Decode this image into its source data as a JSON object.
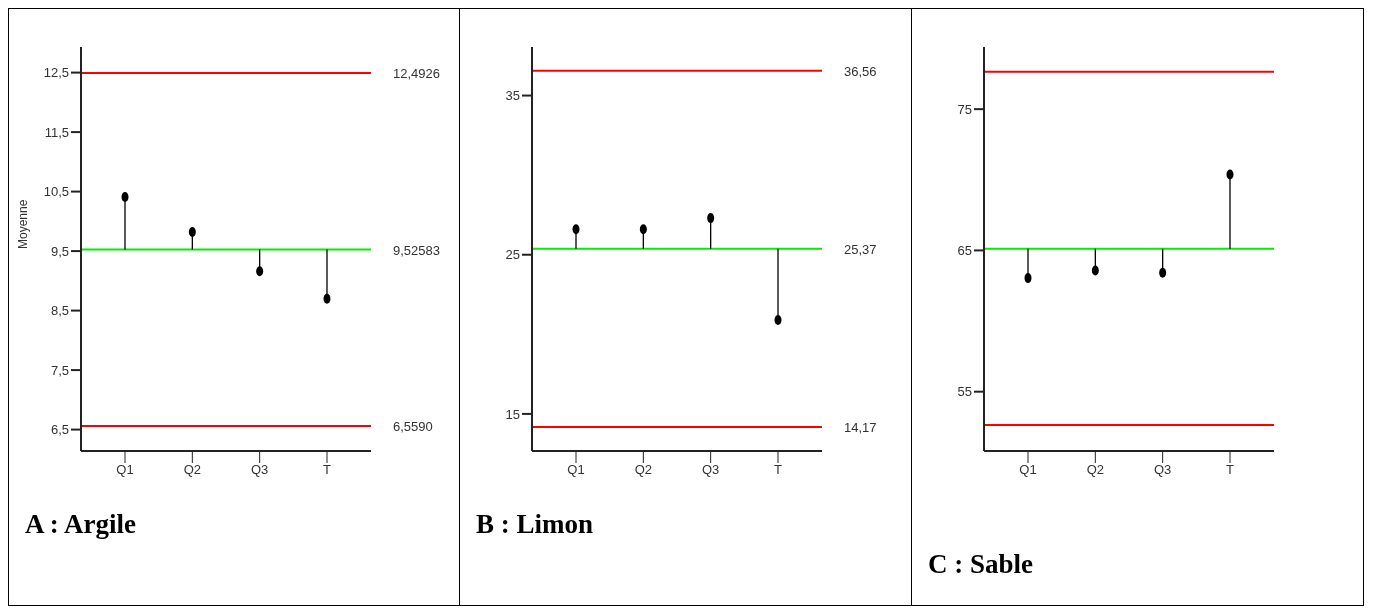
{
  "chart_data": [
    {
      "type": "lollipop",
      "title": "A : Argile",
      "ylabel": "Moyenne",
      "categories": [
        "Q1",
        "Q2",
        "Q3",
        "T"
      ],
      "values": [
        10.41,
        9.82,
        9.16,
        8.7
      ],
      "color": "#000000",
      "marker": "circle",
      "ylim": [
        6.14,
        12.93
      ],
      "yticks": [
        {
          "value": 6.5,
          "label": "6,5"
        },
        {
          "value": 7.5,
          "label": "7,5"
        },
        {
          "value": 8.5,
          "label": "8,5"
        },
        {
          "value": 9.5,
          "label": "9,5"
        },
        {
          "value": 10.5,
          "label": "10,5"
        },
        {
          "value": 11.5,
          "label": "11,5"
        },
        {
          "value": 12.5,
          "label": "12,5"
        }
      ],
      "ref_lines": [
        {
          "axis": "y",
          "value": 9.52583,
          "label": "9,52583",
          "color": "#00ee00"
        },
        {
          "axis": "y",
          "value": 12.4926,
          "label": "12,4926",
          "color": "#ff0000"
        },
        {
          "axis": "y",
          "value": 6.559,
          "label": "6,5590",
          "color": "#ff0000"
        }
      ]
    },
    {
      "type": "lollipop",
      "title": "B : Limon",
      "categories": [
        "Q1",
        "Q2",
        "Q3",
        "T"
      ],
      "values": [
        26.6,
        26.6,
        27.3,
        20.9
      ],
      "color": "#000000",
      "marker": "circle",
      "ylim": [
        12.67,
        38.05
      ],
      "yticks": [
        15,
        25,
        35
      ],
      "ref_lines": [
        {
          "axis": "y",
          "value": 25.37,
          "label": "25,37",
          "color": "#00ee00"
        },
        {
          "axis": "y",
          "value": 36.56,
          "label": "36,56",
          "color": "#ff0000"
        },
        {
          "axis": "y",
          "value": 14.17,
          "label": "14,17",
          "color": "#ff0000"
        }
      ]
    },
    {
      "type": "lollipop",
      "title": "C : Sable",
      "categories": [
        "Q1",
        "Q2",
        "Q3",
        "T"
      ],
      "values": [
        63.04,
        63.58,
        63.42,
        70.38
      ],
      "color": "#000000",
      "marker": "circle",
      "ylim": [
        50.8,
        79.4
      ],
      "yticks": [
        55,
        65,
        75
      ],
      "ref_lines": [
        {
          "axis": "y",
          "value": 65.12,
          "label": null,
          "color": "#00ee00"
        },
        {
          "axis": "y",
          "value": 77.64,
          "label": null,
          "color": "#ff0000"
        },
        {
          "axis": "y",
          "value": 52.64,
          "label": null,
          "color": "#ff0000"
        }
      ]
    }
  ]
}
